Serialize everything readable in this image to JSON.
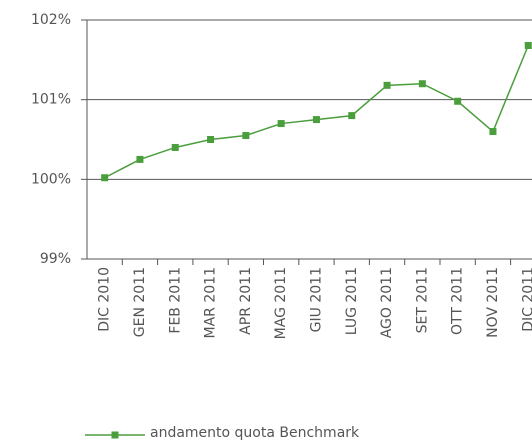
{
  "chart_data": {
    "type": "line",
    "categories": [
      "DIC 2010",
      "GEN 2011",
      "FEB 2011",
      "MAR 2011",
      "APR 2011",
      "MAG 2011",
      "GIU 2011",
      "LUG 2011",
      "AGO 2011",
      "SET 2011",
      "OTT 2011",
      "NOV 2011",
      "DIC 2011"
    ],
    "series": [
      {
        "name": "andamento quota Benchmark",
        "color": "#4a9e3c",
        "values": [
          100.02,
          100.25,
          100.4,
          100.5,
          100.55,
          100.7,
          100.75,
          100.8,
          101.18,
          101.2,
          100.98,
          100.6,
          101.68
        ]
      }
    ],
    "ylim": [
      99,
      102
    ],
    "yticks": [
      {
        "value": 99,
        "label": "99%"
      },
      {
        "value": 100,
        "label": "100%"
      },
      {
        "value": 101,
        "label": "101%"
      },
      {
        "value": 102,
        "label": "102%"
      }
    ],
    "grid": true,
    "legend": "bottom"
  }
}
